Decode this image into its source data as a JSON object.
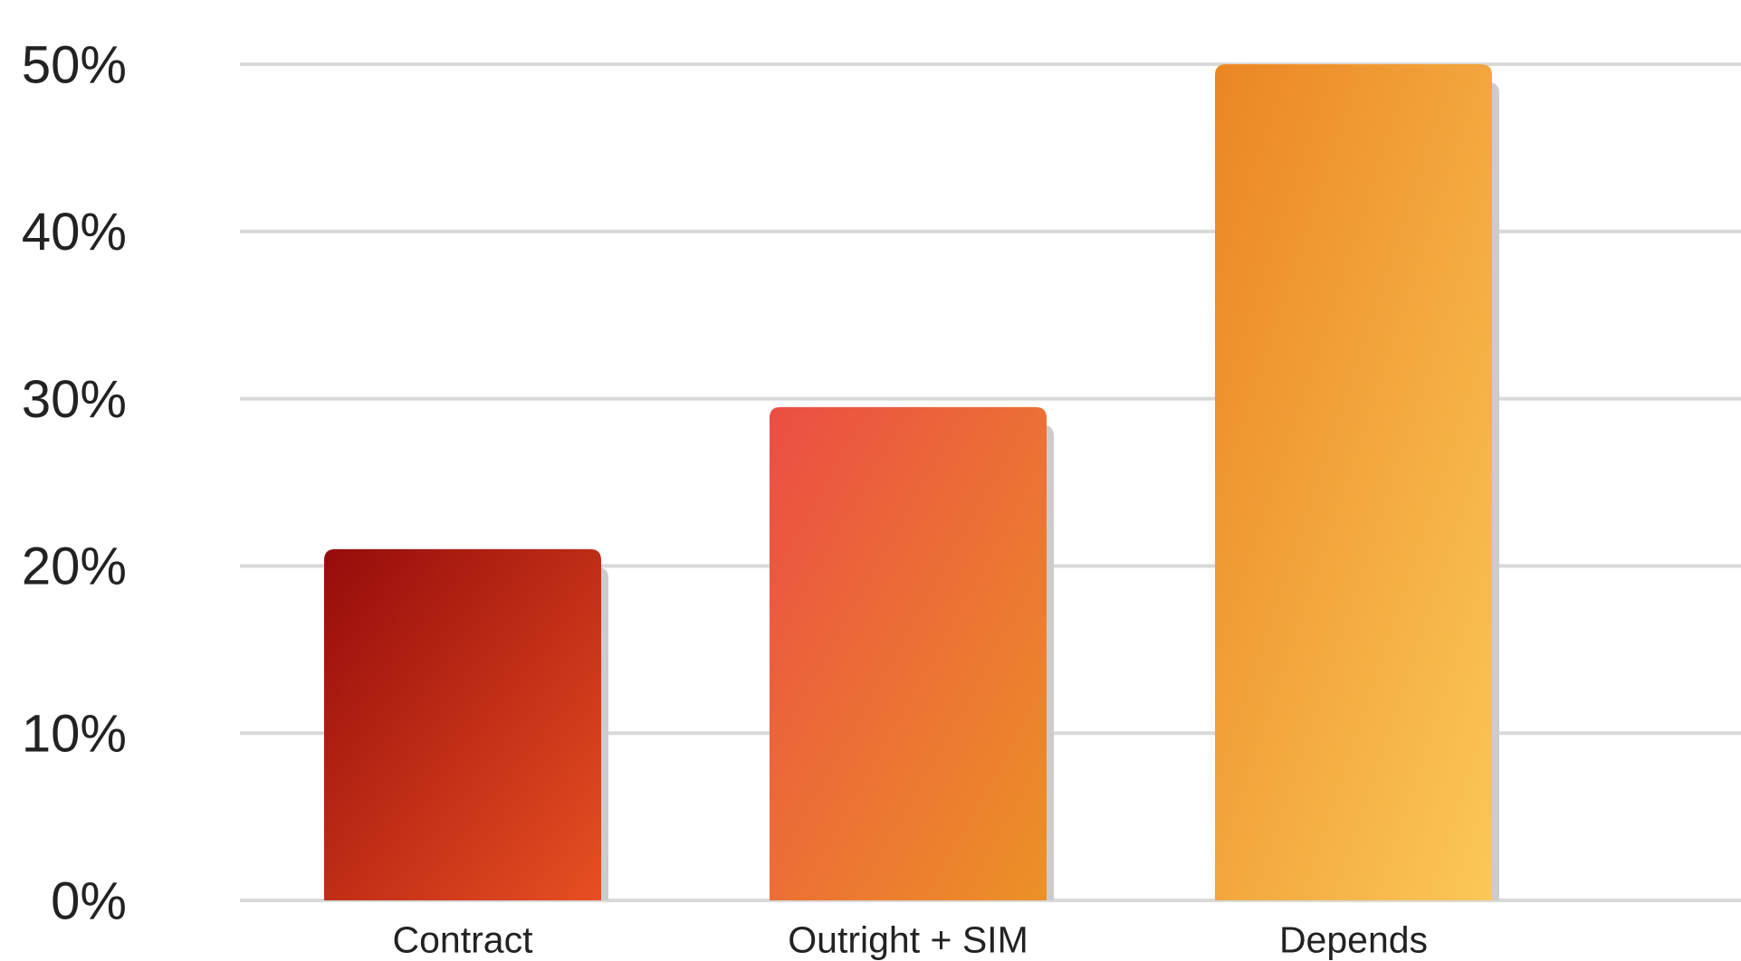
{
  "chart_data": {
    "type": "bar",
    "categories": [
      "Contract",
      "Outright + SIM",
      "Depends"
    ],
    "values": [
      21,
      29.5,
      50
    ],
    "ylim": [
      0,
      50
    ],
    "yticks": [
      0,
      10,
      20,
      30,
      40,
      50
    ],
    "ytick_labels": [
      "0%",
      "10%",
      "20%",
      "30%",
      "40%",
      "50%"
    ],
    "grid": true,
    "legend": "none",
    "title": "",
    "xlabel": "",
    "ylabel": "",
    "bar_gradients": [
      [
        "#960b0b",
        "#e84f22"
      ],
      [
        "#eb4e44",
        "#ec9127"
      ],
      [
        "#eb8524",
        "#fbc857"
      ]
    ],
    "shadow_color": "#cccccc"
  }
}
